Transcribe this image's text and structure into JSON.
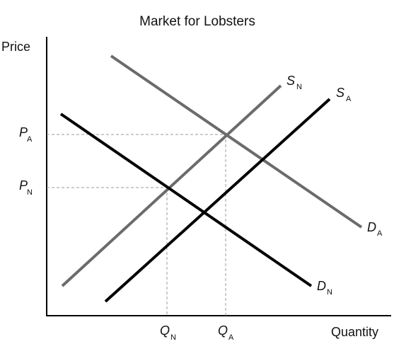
{
  "title": "Market for Lobsters",
  "y_axis_label": "Price",
  "x_axis_label": "Quantity",
  "curves": {
    "supply_new": {
      "letter": "S",
      "sub": "N"
    },
    "supply_a": {
      "letter": "S",
      "sub": "A"
    },
    "demand_a": {
      "letter": "D",
      "sub": "A"
    },
    "demand_new": {
      "letter": "D",
      "sub": "N"
    }
  },
  "price_ticks": {
    "p_a": {
      "letter": "P",
      "sub": "A"
    },
    "p_n": {
      "letter": "P",
      "sub": "N"
    }
  },
  "quantity_ticks": {
    "q_n": {
      "letter": "Q",
      "sub": "N"
    },
    "q_a": {
      "letter": "Q",
      "sub": "A"
    }
  },
  "colors": {
    "axis": "#000000",
    "curve_dark": "#000000",
    "curve_gray": "#6b6b6b",
    "guide": "#9a9a9a"
  }
}
